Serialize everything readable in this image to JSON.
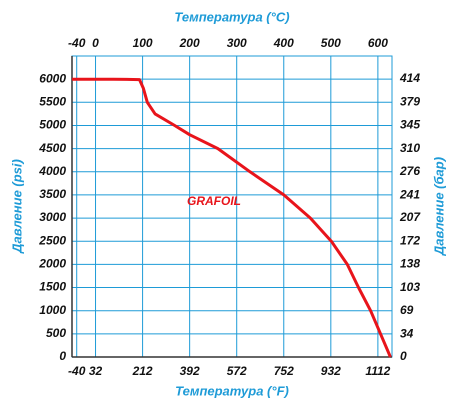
{
  "chart_data": {
    "type": "line",
    "x_label": "Температура (°F)",
    "x2_label": "Температура (°C)",
    "y_label": "Давление (psi)",
    "y2_label": "Давление (бар)",
    "x": [
      -58,
      100,
      200,
      215,
      230,
      260,
      335,
      392,
      500,
      623,
      752,
      854,
      934,
      995,
      1038,
      1084,
      1122,
      1160
    ],
    "series": [
      {
        "name": "GRAFOIL",
        "color": "#e8141b",
        "values": [
          6000,
          6000,
          5990,
          5800,
          5500,
          5250,
          5000,
          4800,
          4500,
          4000,
          3500,
          3000,
          2500,
          2000,
          1500,
          1000,
          500,
          0
        ]
      }
    ],
    "xlim": [
      -58,
      1166
    ],
    "xticks": [
      -40,
      32,
      212,
      392,
      572,
      752,
      932,
      1112
    ],
    "x2lim": [
      -50,
      630
    ],
    "x2ticks": [
      -40,
      0,
      100,
      200,
      300,
      400,
      500,
      600
    ],
    "ylim": [
      0,
      6500
    ],
    "yticks": [
      0,
      500,
      1000,
      1500,
      2000,
      2500,
      3000,
      3500,
      4000,
      4500,
      5000,
      5500,
      6000
    ],
    "y2lim": [
      0,
      448.2
    ],
    "y2ticks": [
      0,
      34,
      69,
      103,
      138,
      172,
      207,
      241,
      276,
      310,
      345,
      379,
      414
    ],
    "grid": true
  }
}
